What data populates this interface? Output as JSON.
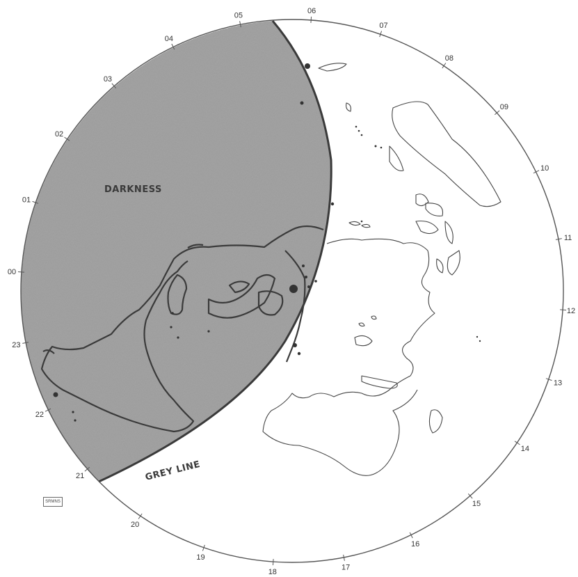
{
  "map": {
    "hour_labels": [
      "00",
      "01",
      "02",
      "03",
      "04",
      "05",
      "06",
      "07",
      "08",
      "09",
      "10",
      "11",
      "12",
      "13",
      "14",
      "15",
      "16",
      "17",
      "18",
      "19",
      "20",
      "21",
      "22",
      "23"
    ],
    "darkness_label": "DARKNESS",
    "grey_line_label": "GREY LINE",
    "stamp": "SRMNS",
    "colors": {
      "darkness": "#9a9a9a",
      "ring": "#555555",
      "coastline": "#444444"
    }
  }
}
